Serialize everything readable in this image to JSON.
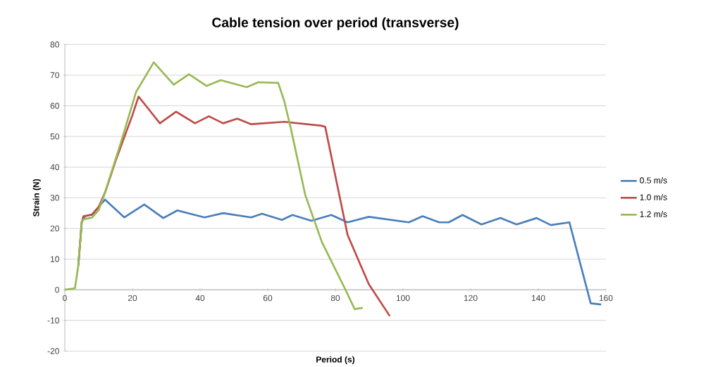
{
  "chart_data": {
    "type": "line",
    "title": "Cable tension over period (transverse)",
    "xlabel": "Period (s)",
    "ylabel": "Strain (N)",
    "xlim": [
      0,
      160
    ],
    "xticks": [
      0,
      20,
      40,
      60,
      80,
      100,
      120,
      140,
      160
    ],
    "ylim": [
      -20,
      80
    ],
    "yticks": [
      -20,
      -10,
      0,
      10,
      20,
      30,
      40,
      50,
      60,
      70,
      80
    ],
    "grid": "y",
    "legend": "right",
    "marker": "none",
    "line_style": "solid",
    "series": [
      {
        "name": "0.5 m/s",
        "color": "#4a7ebb",
        "x": [
          4,
          5,
          6,
          8,
          10,
          11.9,
          17.6,
          23.5,
          29.1,
          33.3,
          41.3,
          46.8,
          55.1,
          58.3,
          64.2,
          67.3,
          72.9,
          78.8,
          83.6,
          89.9,
          101.7,
          105.8,
          110.7,
          113.5,
          117.6,
          123.2,
          128.8,
          133.6,
          139.5,
          143.7,
          149.2,
          155.5,
          158.6
        ],
        "values": [
          8,
          22,
          24,
          24.5,
          27,
          29.4,
          23.6,
          27.8,
          23.4,
          25.9,
          23.6,
          25,
          23.6,
          24.8,
          22.8,
          24.4,
          22.5,
          24.4,
          22,
          23.8,
          22,
          24,
          22,
          22,
          24.4,
          21.3,
          23.4,
          21.3,
          23.4,
          21.1,
          22,
          -4.4,
          -4.8
        ]
      },
      {
        "name": "1.0 m/s",
        "color": "#be4b48",
        "x": [
          4,
          5,
          5.5,
          8,
          10,
          12,
          15,
          16.9,
          20,
          21.8,
          24,
          28.1,
          32.9,
          38.5,
          42.6,
          46.8,
          51,
          55.1,
          64.9,
          76,
          77,
          83.6,
          89.9,
          96.1
        ],
        "values": [
          8,
          22,
          24,
          24.5,
          27,
          32,
          42,
          47.7,
          57,
          63,
          60,
          54.3,
          58.1,
          54.3,
          56.6,
          54.3,
          55.8,
          54,
          54.8,
          53.5,
          53.1,
          17.9,
          1.8,
          -8.6
        ]
      },
      {
        "name": "1.2 m/s",
        "color": "#98b954",
        "x": [
          0,
          3,
          4,
          5,
          5.5,
          8,
          10,
          11.4,
          16.3,
          21.1,
          26.3,
          32.2,
          36.7,
          41.9,
          46.1,
          53.8,
          57.2,
          63.1,
          64.9,
          66.9,
          71.1,
          76,
          82.9,
          85.7,
          88.1
        ],
        "values": [
          0,
          0.5,
          8,
          22,
          23,
          23.5,
          26,
          30.1,
          47,
          64.6,
          74.2,
          66.9,
          70.3,
          66.5,
          68.4,
          66.1,
          67.7,
          67.5,
          61.5,
          52.3,
          30.9,
          15.6,
          0.2,
          -6.3,
          -5.9
        ]
      }
    ]
  }
}
